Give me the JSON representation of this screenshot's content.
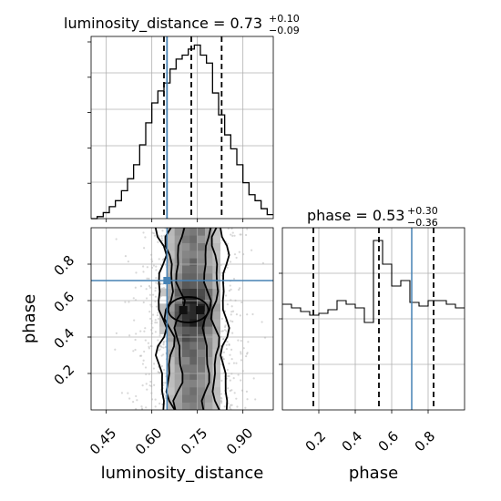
{
  "chart_data": [
    {
      "type": "histogram",
      "panel": "top-left",
      "parameter": "luminosity_distance",
      "title": {
        "name": "luminosity_distance",
        "value": "0.73",
        "plus": "+0.10",
        "minus": "−0.09"
      },
      "xlim": [
        0.4,
        1.0
      ],
      "bin_edges": [
        0.4,
        0.42,
        0.44,
        0.46,
        0.48,
        0.5,
        0.52,
        0.54,
        0.56,
        0.58,
        0.6,
        0.62,
        0.64,
        0.66,
        0.68,
        0.7,
        0.72,
        0.74,
        0.76,
        0.78,
        0.8,
        0.82,
        0.84,
        0.86,
        0.88,
        0.9,
        0.92,
        0.94,
        0.96,
        0.98,
        1.0
      ],
      "counts": [
        0,
        1,
        3,
        6,
        9,
        14,
        20,
        27,
        37,
        48,
        58,
        64,
        68,
        75,
        80,
        82,
        85,
        87,
        82,
        78,
        63,
        52,
        42,
        35,
        27,
        18,
        12,
        9,
        5,
        2
      ],
      "quantiles": [
        0.64,
        0.73,
        0.83
      ],
      "truth": 0.65,
      "show_y_ticklabels": false
    },
    {
      "type": "histogram",
      "panel": "bottom-right",
      "parameter": "phase",
      "title": {
        "name": "phase",
        "value": "0.53",
        "plus": "+0.30",
        "minus": "−0.36"
      },
      "xlim": [
        0.0,
        1.0
      ],
      "xticks": [
        "0.2",
        "0.4",
        "0.6",
        "0.8"
      ],
      "xlabel": "phase",
      "bin_edges": [
        0.0,
        0.05,
        0.1,
        0.15,
        0.2,
        0.25,
        0.3,
        0.35,
        0.4,
        0.45,
        0.5,
        0.55,
        0.6,
        0.65,
        0.7,
        0.75,
        0.8,
        0.85,
        0.9,
        0.95,
        1.0
      ],
      "counts": [
        58,
        56,
        54,
        52,
        53,
        55,
        60,
        58,
        56,
        48,
        93,
        80,
        68,
        71,
        59,
        57,
        60,
        60,
        58,
        56
      ],
      "ylim": [
        0,
        100
      ],
      "quantiles": [
        0.17,
        0.53,
        0.83
      ],
      "truth": 0.71,
      "show_y_ticklabels": false
    },
    {
      "type": "2d_histogram",
      "panel": "bottom-left",
      "x_parameter": "luminosity_distance",
      "y_parameter": "phase",
      "xlabel": "luminosity_distance",
      "ylabel": "phase",
      "xlim": [
        0.4,
        1.0
      ],
      "ylim": [
        0.0,
        1.0
      ],
      "xticks": [
        "0.45",
        "0.60",
        "0.75",
        "0.90"
      ],
      "yticks": [
        "0.2",
        "0.4",
        "0.6",
        "0.8"
      ],
      "truth": {
        "x": 0.65,
        "y": 0.71
      },
      "contour_levels": 4
    }
  ]
}
